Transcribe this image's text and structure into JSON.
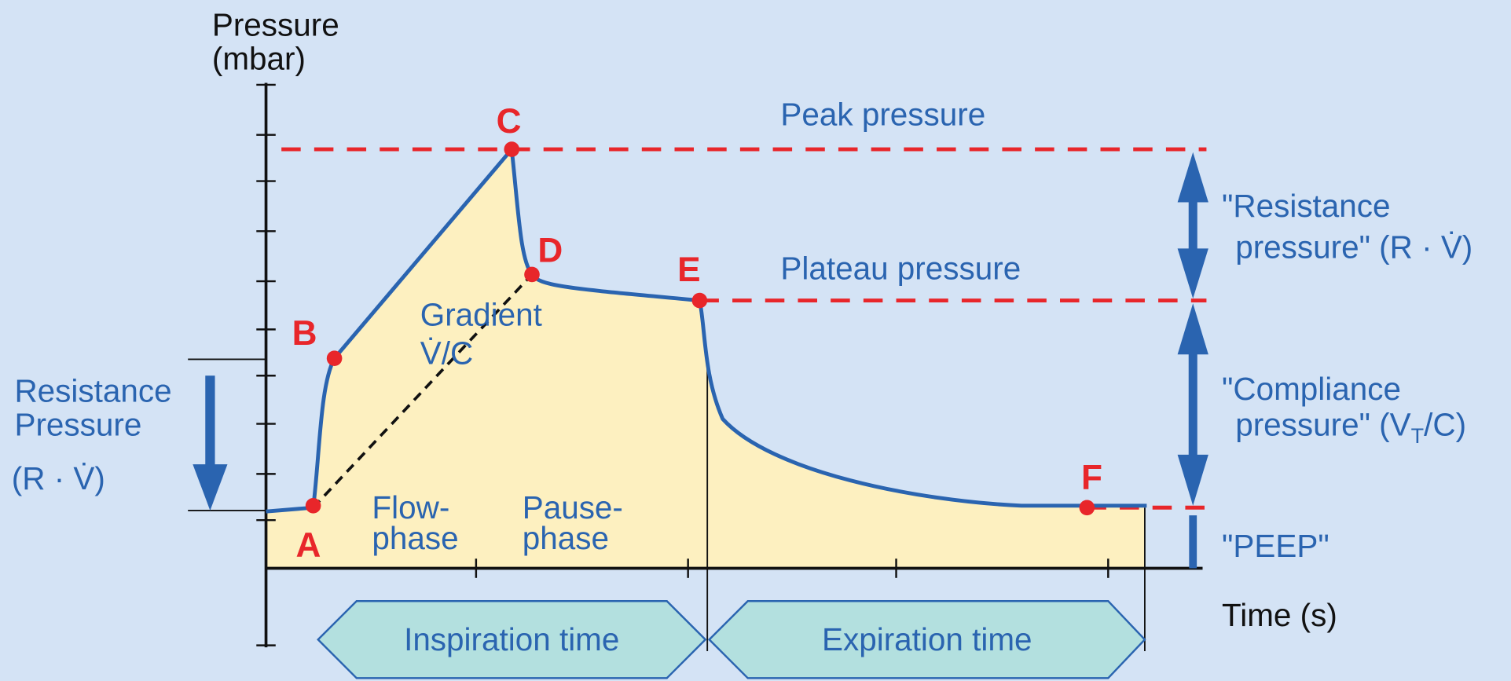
{
  "axes": {
    "y_label": [
      "Pressure",
      "(mbar)"
    ],
    "x_label": "Time (s)"
  },
  "points": [
    "A",
    "B",
    "C",
    "D",
    "E",
    "F"
  ],
  "levels": {
    "peak": "Peak pressure",
    "plateau": "Plateau pressure"
  },
  "gradient": [
    "Gradient",
    "V̇/C"
  ],
  "phases": {
    "flow": [
      "Flow-",
      "phase"
    ],
    "pause": [
      "Pause-",
      "phase"
    ]
  },
  "left_label": [
    "Resistance",
    "Pressure",
    "(R · V̇)"
  ],
  "right_labels": {
    "resistance": [
      "\"Resistance",
      "pressure\" (R · V̇)"
    ],
    "compliance": [
      "\"Compliance",
      "pressure\" (V",
      "T",
      "/C)"
    ],
    "peep": "\"PEEP\""
  },
  "times": {
    "inspiration": "Inspiration time",
    "expiration": "Expiration time"
  }
}
